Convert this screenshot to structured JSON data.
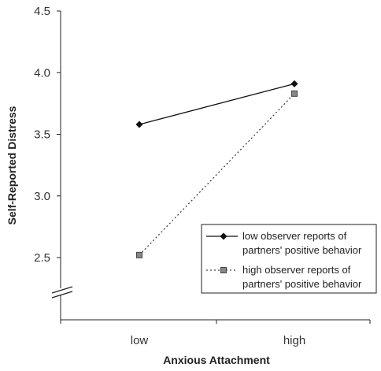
{
  "chart_data": {
    "type": "line",
    "title": "",
    "xlabel": "Anxious Attachment",
    "ylabel": "Self-Reported Distress",
    "categories": [
      "low",
      "high"
    ],
    "yticks": [
      "2.5",
      "3.0",
      "3.5",
      "4.0",
      "4.5"
    ],
    "ylim": [
      2.0,
      4.5
    ],
    "axis_break": true,
    "legend_position": "bottom-right",
    "series": [
      {
        "name": "low observer reports of partners' positive behavior",
        "name_lines": [
          "low observer reports of",
          "partners' positive behavior"
        ],
        "values": [
          3.58,
          3.91
        ],
        "line": "solid",
        "marker": "diamond",
        "color": "#111111"
      },
      {
        "name": "high observer reports of partners' positive behavior",
        "name_lines": [
          "high observer reports of",
          "partners' positive behavior"
        ],
        "values": [
          2.52,
          3.83
        ],
        "line": "dotted",
        "marker": "square",
        "color": "#444444"
      }
    ]
  }
}
